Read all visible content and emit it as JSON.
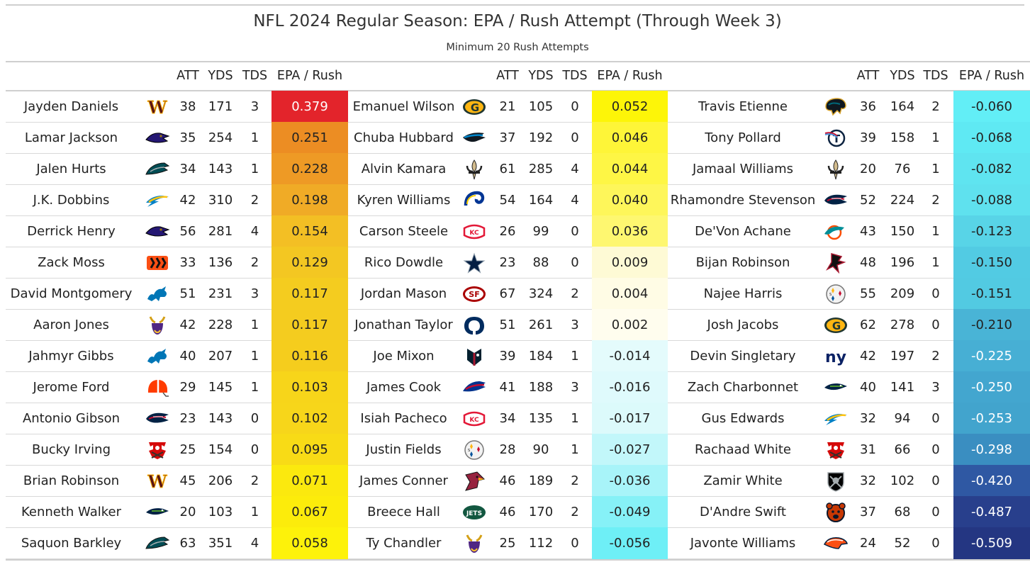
{
  "title": "NFL 2024 Regular Season: EPA / Rush Attempt (Through Week 3)",
  "subtitle": "Minimum 20 Rush Attempts",
  "columns": {
    "att": "ATT",
    "yds": "YDS",
    "tds": "TDS",
    "epa": "EPA / Rush"
  },
  "palette": {
    "color_scale": "red-orange-yellow for positive EPA, white near zero, cyan to dark navy for negative EPA",
    "light_text_on_dark": "#ffffff"
  },
  "team_logo_colors": {
    "commanders": "#5a1414",
    "ravens": "#241773",
    "eagles": "#004c54",
    "chargers": "#0080c6",
    "bengals": "#fb4f14",
    "lions": "#0076b6",
    "vikings": "#4f2683",
    "browns": "#ff3c00",
    "patriots": "#002244",
    "buccaneers": "#d50a0a",
    "seahawks": "#002244",
    "packers": "#203731",
    "panthers": "#0085ca",
    "saints": "#d3bc8d",
    "rams": "#003594",
    "chiefs": "#e31837",
    "cowboys": "#041e42",
    "49ers": "#aa0000",
    "colts": "#002c5f",
    "texans": "#03202f",
    "bills": "#00338d",
    "steelers": "#ffb612",
    "cardinals": "#97233f",
    "jets": "#125740",
    "jaguars": "#006778",
    "titans": "#4b92db",
    "dolphins": "#008e97",
    "falcons": "#a71930",
    "giants": "#0b2265",
    "raiders": "#000000",
    "bears": "#0b162a",
    "broncos": "#fb4f14"
  },
  "groups": [
    {
      "rows": [
        {
          "name": "Jayden Daniels",
          "team": "commanders",
          "att": "38",
          "yds": "171",
          "tds": "3",
          "epa": "0.379",
          "bg": "#e3242b",
          "fg": "#ffffff"
        },
        {
          "name": "Lamar Jackson",
          "team": "ravens",
          "att": "35",
          "yds": "254",
          "tds": "1",
          "epa": "0.251",
          "bg": "#ec8d23",
          "fg": "#222222"
        },
        {
          "name": "Jalen Hurts",
          "team": "eagles",
          "att": "34",
          "yds": "143",
          "tds": "1",
          "epa": "0.228",
          "bg": "#ee9a25",
          "fg": "#222222"
        },
        {
          "name": "J.K. Dobbins",
          "team": "chargers",
          "att": "42",
          "yds": "310",
          "tds": "2",
          "epa": "0.198",
          "bg": "#f0ab26",
          "fg": "#222222"
        },
        {
          "name": "Derrick Henry",
          "team": "ravens",
          "att": "56",
          "yds": "281",
          "tds": "4",
          "epa": "0.154",
          "bg": "#f3bf24",
          "fg": "#222222"
        },
        {
          "name": "Zack Moss",
          "team": "bengals",
          "att": "33",
          "yds": "136",
          "tds": "2",
          "epa": "0.129",
          "bg": "#f3c722",
          "fg": "#222222"
        },
        {
          "name": "David Montgomery",
          "team": "lions",
          "att": "51",
          "yds": "231",
          "tds": "3",
          "epa": "0.117",
          "bg": "#f4cc1f",
          "fg": "#222222"
        },
        {
          "name": "Aaron Jones",
          "team": "vikings",
          "att": "42",
          "yds": "228",
          "tds": "1",
          "epa": "0.117",
          "bg": "#f4cc1f",
          "fg": "#222222"
        },
        {
          "name": "Jahmyr Gibbs",
          "team": "lions",
          "att": "40",
          "yds": "207",
          "tds": "1",
          "epa": "0.116",
          "bg": "#f5cd1d",
          "fg": "#222222"
        },
        {
          "name": "Jerome Ford",
          "team": "browns",
          "att": "29",
          "yds": "145",
          "tds": "1",
          "epa": "0.103",
          "bg": "#f7d51a",
          "fg": "#222222"
        },
        {
          "name": "Antonio Gibson",
          "team": "patriots",
          "att": "23",
          "yds": "143",
          "tds": "0",
          "epa": "0.102",
          "bg": "#f7d61a",
          "fg": "#222222"
        },
        {
          "name": "Bucky Irving",
          "team": "buccaneers",
          "att": "25",
          "yds": "154",
          "tds": "0",
          "epa": "0.095",
          "bg": "#f8db16",
          "fg": "#222222"
        },
        {
          "name": "Brian Robinson",
          "team": "commanders",
          "att": "45",
          "yds": "206",
          "tds": "2",
          "epa": "0.071",
          "bg": "#fbe90e",
          "fg": "#222222"
        },
        {
          "name": "Kenneth Walker",
          "team": "seahawks",
          "att": "20",
          "yds": "103",
          "tds": "1",
          "epa": "0.067",
          "bg": "#fcec0b",
          "fg": "#222222"
        },
        {
          "name": "Saquon Barkley",
          "team": "eagles",
          "att": "63",
          "yds": "351",
          "tds": "4",
          "epa": "0.058",
          "bg": "#fdf20a",
          "fg": "#222222"
        }
      ]
    },
    {
      "rows": [
        {
          "name": "Emanuel Wilson",
          "team": "packers",
          "att": "21",
          "yds": "105",
          "tds": "0",
          "epa": "0.052",
          "bg": "#fdf508",
          "fg": "#222222"
        },
        {
          "name": "Chuba Hubbard",
          "team": "panthers",
          "att": "37",
          "yds": "192",
          "tds": "0",
          "epa": "0.046",
          "bg": "#fef538",
          "fg": "#222222"
        },
        {
          "name": "Alvin Kamara",
          "team": "saints",
          "att": "61",
          "yds": "285",
          "tds": "4",
          "epa": "0.044",
          "bg": "#fef645",
          "fg": "#222222"
        },
        {
          "name": "Kyren Williams",
          "team": "rams",
          "att": "54",
          "yds": "164",
          "tds": "4",
          "epa": "0.040",
          "bg": "#fef65a",
          "fg": "#222222"
        },
        {
          "name": "Carson Steele",
          "team": "chiefs",
          "att": "26",
          "yds": "99",
          "tds": "0",
          "epa": "0.036",
          "bg": "#fef770",
          "fg": "#222222"
        },
        {
          "name": "Rico Dowdle",
          "team": "cowboys",
          "att": "23",
          "yds": "88",
          "tds": "0",
          "epa": "0.009",
          "bg": "#fefad5",
          "fg": "#222222"
        },
        {
          "name": "Jordan Mason",
          "team": "49ers",
          "att": "67",
          "yds": "324",
          "tds": "2",
          "epa": "0.004",
          "bg": "#fffce5",
          "fg": "#222222"
        },
        {
          "name": "Jonathan Taylor",
          "team": "colts",
          "att": "51",
          "yds": "261",
          "tds": "3",
          "epa": "0.002",
          "bg": "#fffdee",
          "fg": "#222222"
        },
        {
          "name": "Joe Mixon",
          "team": "texans",
          "att": "39",
          "yds": "184",
          "tds": "1",
          "epa": "-0.014",
          "bg": "#e4fbfc",
          "fg": "#222222"
        },
        {
          "name": "James Cook",
          "team": "bills",
          "att": "41",
          "yds": "188",
          "tds": "3",
          "epa": "-0.016",
          "bg": "#dffafc",
          "fg": "#222222"
        },
        {
          "name": "Isiah Pacheco",
          "team": "chiefs",
          "att": "34",
          "yds": "135",
          "tds": "1",
          "epa": "-0.017",
          "bg": "#dcfafb",
          "fg": "#222222"
        },
        {
          "name": "Justin Fields",
          "team": "steelers",
          "att": "28",
          "yds": "90",
          "tds": "1",
          "epa": "-0.027",
          "bg": "#c2f7fa",
          "fg": "#222222"
        },
        {
          "name": "James Conner",
          "team": "cardinals",
          "att": "46",
          "yds": "189",
          "tds": "2",
          "epa": "-0.036",
          "bg": "#a8f4f9",
          "fg": "#222222"
        },
        {
          "name": "Breece Hall",
          "team": "jets",
          "att": "46",
          "yds": "170",
          "tds": "2",
          "epa": "-0.049",
          "bg": "#86f1f7",
          "fg": "#222222"
        },
        {
          "name": "Ty Chandler",
          "team": "vikings",
          "att": "25",
          "yds": "112",
          "tds": "0",
          "epa": "-0.056",
          "bg": "#6eeff6",
          "fg": "#222222"
        }
      ]
    },
    {
      "rows": [
        {
          "name": "Travis Etienne",
          "team": "jaguars",
          "att": "36",
          "yds": "164",
          "tds": "2",
          "epa": "-0.060",
          "bg": "#62eef6",
          "fg": "#222222"
        },
        {
          "name": "Tony Pollard",
          "team": "titans",
          "att": "39",
          "yds": "158",
          "tds": "1",
          "epa": "-0.068",
          "bg": "#5fe9f3",
          "fg": "#222222"
        },
        {
          "name": "Jamaal Williams",
          "team": "saints",
          "att": "20",
          "yds": "76",
          "tds": "1",
          "epa": "-0.082",
          "bg": "#5fe4f0",
          "fg": "#222222"
        },
        {
          "name": "Rhamondre Stevenson",
          "team": "patriots",
          "att": "52",
          "yds": "224",
          "tds": "2",
          "epa": "-0.088",
          "bg": "#5fe1ee",
          "fg": "#222222"
        },
        {
          "name": "De'Von Achane",
          "team": "dolphins",
          "att": "43",
          "yds": "150",
          "tds": "1",
          "epa": "-0.123",
          "bg": "#58d4e7",
          "fg": "#222222"
        },
        {
          "name": "Bijan Robinson",
          "team": "falcons",
          "att": "48",
          "yds": "196",
          "tds": "1",
          "epa": "-0.150",
          "bg": "#52cbe3",
          "fg": "#222222"
        },
        {
          "name": "Najee Harris",
          "team": "steelers",
          "att": "55",
          "yds": "209",
          "tds": "0",
          "epa": "-0.151",
          "bg": "#52cae2",
          "fg": "#222222"
        },
        {
          "name": "Josh Jacobs",
          "team": "packers",
          "att": "62",
          "yds": "278",
          "tds": "0",
          "epa": "-0.210",
          "bg": "#49b4d6",
          "fg": "#222222"
        },
        {
          "name": "Devin Singletary",
          "team": "giants",
          "att": "42",
          "yds": "197",
          "tds": "2",
          "epa": "-0.225",
          "bg": "#47afd4",
          "fg": "#ffffff"
        },
        {
          "name": "Zach Charbonnet",
          "team": "seahawks",
          "att": "40",
          "yds": "141",
          "tds": "3",
          "epa": "-0.250",
          "bg": "#43a6cf",
          "fg": "#ffffff"
        },
        {
          "name": "Gus Edwards",
          "team": "chargers",
          "att": "32",
          "yds": "94",
          "tds": "0",
          "epa": "-0.253",
          "bg": "#42a4cd",
          "fg": "#ffffff"
        },
        {
          "name": "Rachaad White",
          "team": "buccaneers",
          "att": "31",
          "yds": "66",
          "tds": "0",
          "epa": "-0.298",
          "bg": "#3a8ec1",
          "fg": "#ffffff"
        },
        {
          "name": "Zamir White",
          "team": "raiders",
          "att": "32",
          "yds": "102",
          "tds": "0",
          "epa": "-0.420",
          "bg": "#2f58a3",
          "fg": "#ffffff"
        },
        {
          "name": "D'Andre Swift",
          "team": "bears",
          "att": "37",
          "yds": "68",
          "tds": "0",
          "epa": "-0.487",
          "bg": "#283f8c",
          "fg": "#ffffff"
        },
        {
          "name": "Javonte Williams",
          "team": "broncos",
          "att": "24",
          "yds": "52",
          "tds": "0",
          "epa": "-0.509",
          "bg": "#243682",
          "fg": "#ffffff"
        }
      ]
    }
  ]
}
